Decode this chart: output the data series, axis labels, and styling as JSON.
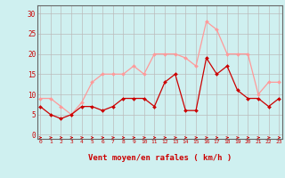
{
  "x": [
    0,
    1,
    2,
    3,
    4,
    5,
    6,
    7,
    8,
    9,
    10,
    11,
    12,
    13,
    14,
    15,
    16,
    17,
    18,
    19,
    20,
    21,
    22,
    23
  ],
  "avg_wind": [
    7,
    5,
    4,
    5,
    7,
    7,
    6,
    7,
    9,
    9,
    9,
    7,
    13,
    15,
    6,
    6,
    19,
    15,
    17,
    11,
    9,
    9,
    7,
    9
  ],
  "gust_wind": [
    9,
    9,
    7,
    5,
    8,
    13,
    15,
    15,
    15,
    17,
    15,
    20,
    20,
    20,
    19,
    17,
    28,
    26,
    20,
    20,
    20,
    10,
    13,
    13
  ],
  "avg_color": "#cc0000",
  "gust_color": "#ff9999",
  "bg_color": "#cff0f0",
  "grid_color": "#bbbbbb",
  "xlabel": "Vent moyen/en rafales ( km/h )",
  "xlabel_color": "#cc0000",
  "yticks": [
    0,
    5,
    10,
    15,
    20,
    25,
    30
  ],
  "ylim": [
    -1,
    32
  ],
  "xlim": [
    -0.3,
    23.3
  ]
}
